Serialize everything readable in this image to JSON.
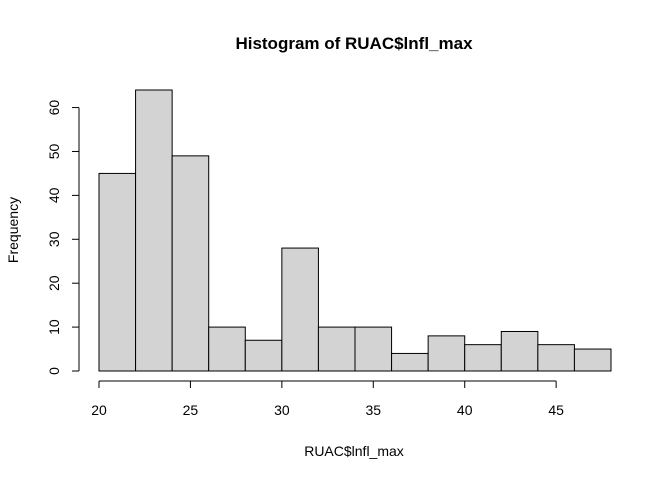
{
  "chart_data": {
    "type": "bar",
    "title": "Histogram of RUAC$lnfl_max",
    "xlabel": "RUAC$lnfl_max",
    "ylabel": "Frequency",
    "bins": [
      {
        "start": 20,
        "end": 22,
        "count": 45
      },
      {
        "start": 22,
        "end": 24,
        "count": 64
      },
      {
        "start": 24,
        "end": 26,
        "count": 49
      },
      {
        "start": 26,
        "end": 28,
        "count": 10
      },
      {
        "start": 28,
        "end": 30,
        "count": 7
      },
      {
        "start": 30,
        "end": 32,
        "count": 28
      },
      {
        "start": 32,
        "end": 34,
        "count": 10
      },
      {
        "start": 34,
        "end": 36,
        "count": 10
      },
      {
        "start": 36,
        "end": 38,
        "count": 4
      },
      {
        "start": 38,
        "end": 40,
        "count": 8
      },
      {
        "start": 40,
        "end": 42,
        "count": 6
      },
      {
        "start": 42,
        "end": 44,
        "count": 9
      },
      {
        "start": 44,
        "end": 46,
        "count": 6
      },
      {
        "start": 46,
        "end": 48,
        "count": 5
      }
    ],
    "xlim": [
      20,
      48
    ],
    "ylim": [
      0,
      64
    ],
    "x_ticks": [
      "20",
      "25",
      "30",
      "35",
      "40",
      "45"
    ],
    "y_ticks": [
      "0",
      "10",
      "20",
      "30",
      "40",
      "50",
      "60"
    ],
    "grid": false,
    "bar_fill": "#d3d3d3",
    "bar_stroke": "#000000"
  }
}
